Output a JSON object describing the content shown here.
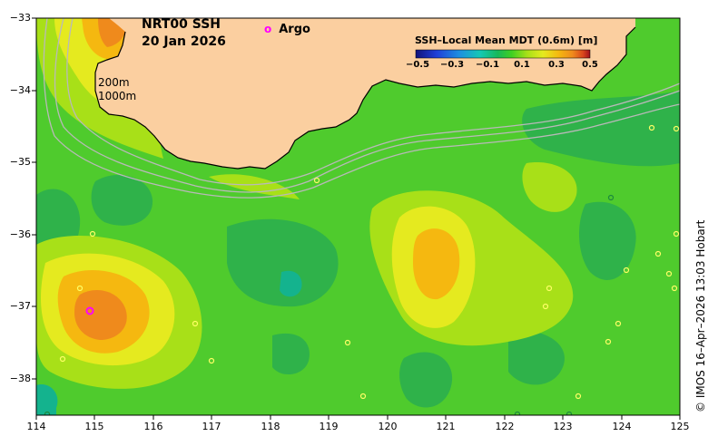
{
  "title": {
    "line1": "NRT00 SSH",
    "line2": "20 Jan 2026"
  },
  "legend": {
    "marker": "o",
    "label": "Argo"
  },
  "depth_contours": [
    "200m",
    "1000m"
  ],
  "colorbar": {
    "title": "SSH–Local Mean MDT (0.6m) [m]",
    "ticks": [
      "−0.5",
      "−0.3",
      "−0.1",
      "0.1",
      "0.3",
      "0.5"
    ],
    "colors": [
      "#12127a",
      "#1f3fd8",
      "#1e8fe0",
      "#15c8b4",
      "#17b85a",
      "#3fcf22",
      "#a8e018",
      "#e5ea1f",
      "#f5b810",
      "#ef8a1c",
      "#d9461c",
      "#a0101c"
    ]
  },
  "axes": {
    "x_ticks": [
      "114",
      "115",
      "116",
      "117",
      "118",
      "119",
      "120",
      "121",
      "122",
      "123",
      "124",
      "125"
    ],
    "y_ticks": [
      "−33",
      "−34",
      "−35",
      "−36",
      "−37",
      "−38"
    ],
    "lon_range": [
      114,
      125
    ],
    "lat_range": [
      -33,
      -38.5
    ]
  },
  "credit": "© IMOS 16–Apr–2026 13:03 Hobart",
  "colors": {
    "land": "#fbcfa0",
    "ocean_base": "#4fcb2d",
    "argo": "#ff00ff",
    "contour": "#b9b9b9"
  },
  "argo_floats": [
    {
      "lon": 115.05,
      "lat": -37.04
    }
  ]
}
